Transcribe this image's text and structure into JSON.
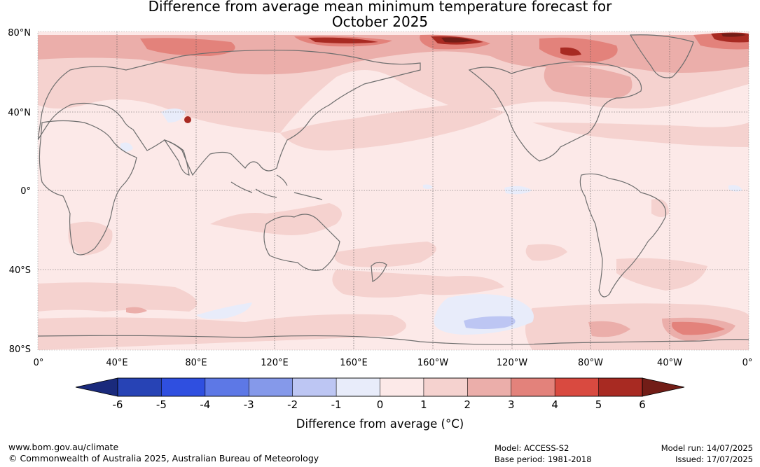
{
  "title": {
    "line1": "Difference from average mean minimum temperature forecast for",
    "line2": "October 2025"
  },
  "map": {
    "lat_labels": [
      "80°N",
      "40°N",
      "0°",
      "40°S",
      "80°S"
    ],
    "lon_labels": [
      "0°",
      "40°E",
      "80°E",
      "120°E",
      "160°E",
      "160°W",
      "120°W",
      "80°W",
      "40°W",
      "0°"
    ],
    "region": "World (0° to 360° longitude, 80°S to 80°N)"
  },
  "colorbar": {
    "label": "Difference from average (°C)",
    "ticks": [
      "-6",
      "-5",
      "-4",
      "-3",
      "-2",
      "-1",
      "0",
      "1",
      "2",
      "3",
      "4",
      "5",
      "6"
    ],
    "colors": {
      "below_min": "#1a2a7c",
      "bins": [
        "#2743b5",
        "#2f4fe0",
        "#5d78e6",
        "#8599ea",
        "#bdc6f3",
        "#e8ecfa",
        "#fce9e8",
        "#f5d2cf",
        "#ebaeaa",
        "#e3827b",
        "#d94a40",
        "#a82a22"
      ],
      "above_max": "#721d17"
    }
  },
  "footer": {
    "website": "www.bom.gov.au/climate",
    "copyright": "© Commonwealth of Australia 2025, Australian Bureau of Meteorology",
    "model": "Model: ACCESS-S2",
    "base_period": "Base period: 1981-2018",
    "model_run": "Model run: 14/07/2025",
    "issued": "Issued: 17/07/2025"
  }
}
